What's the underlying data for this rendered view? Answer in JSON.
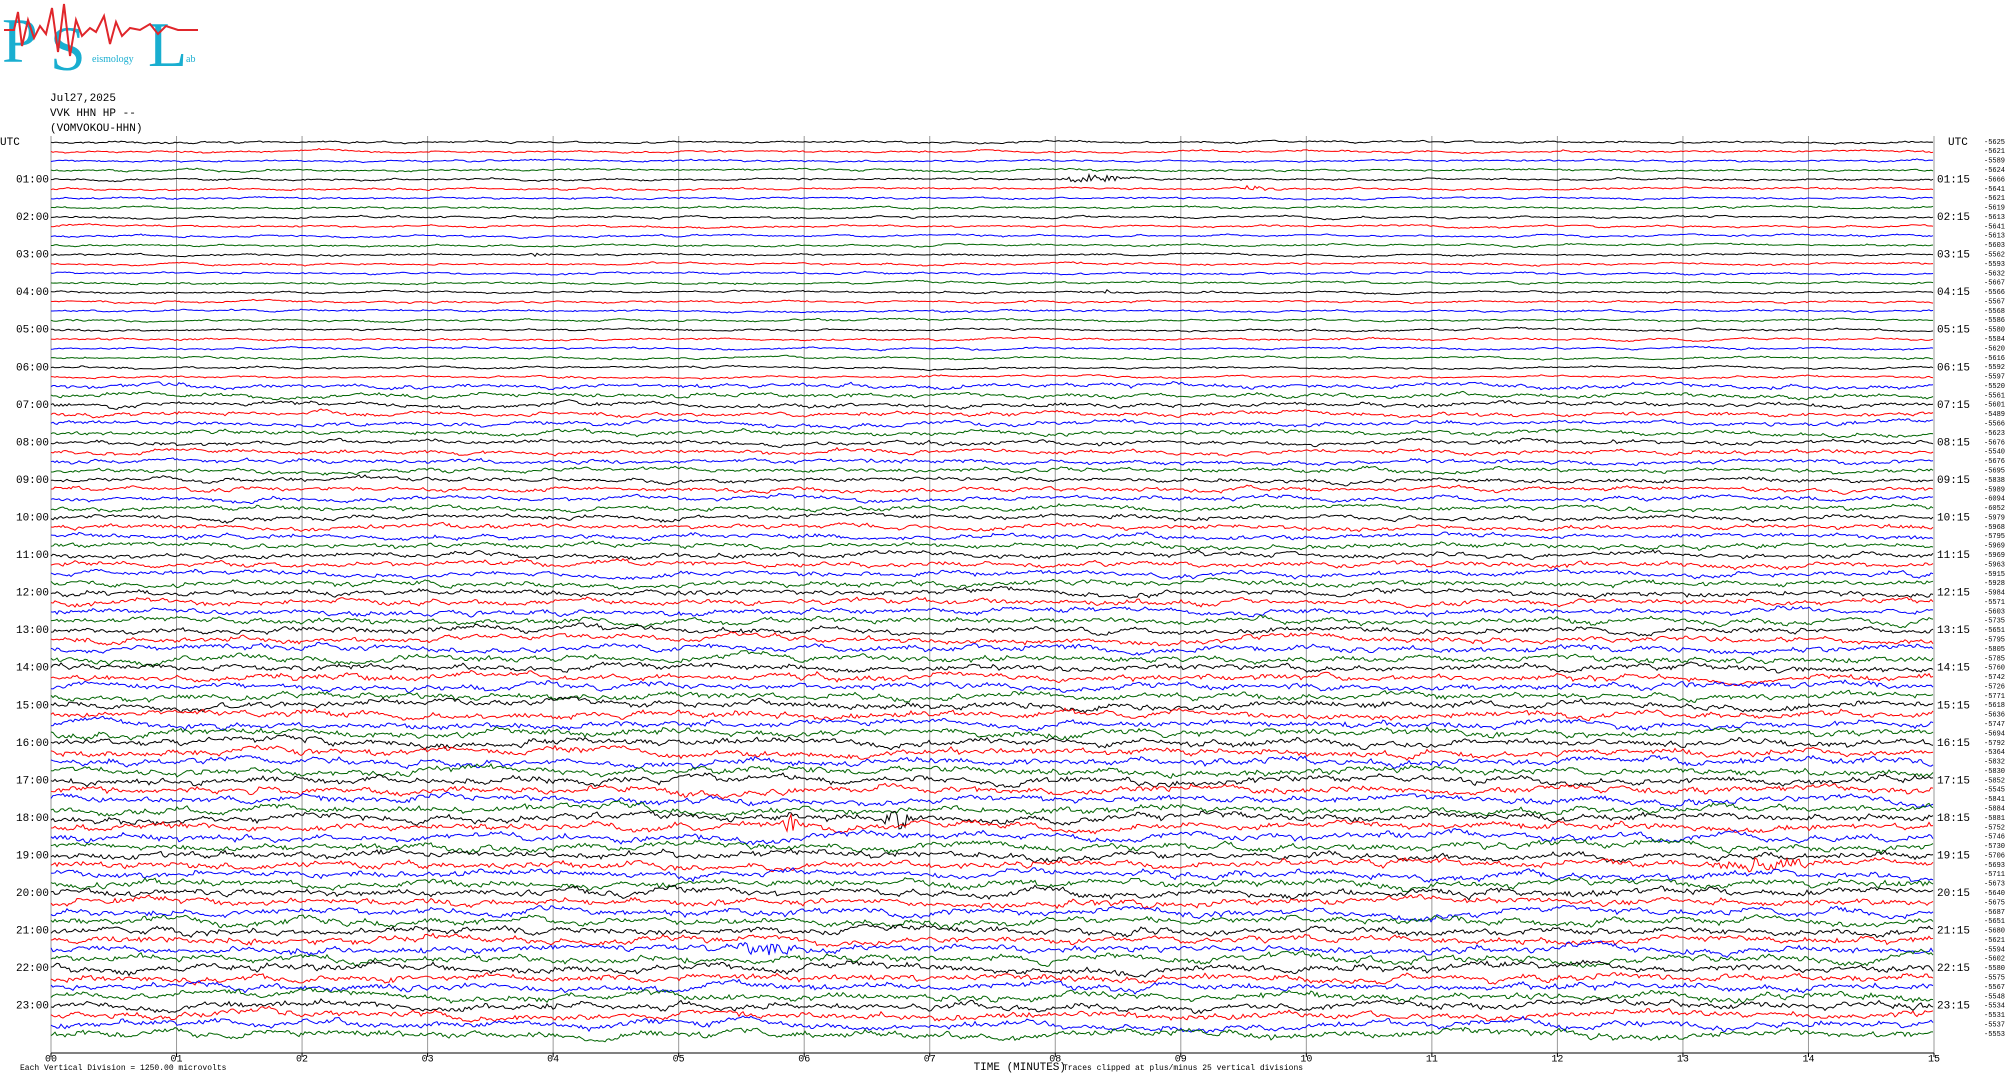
{
  "header": {
    "logo_letters": [
      "P",
      "S",
      "L"
    ],
    "logo_small": [
      "eismology",
      "ab"
    ]
  },
  "chart_data": {
    "type": "helicorder",
    "date": "Jul27,2025",
    "station": "VVK HHN HP --",
    "channel_name": "(VOMVOKOU-HHN)",
    "left_axis_label": "UTC",
    "right_axis_label": "UTC",
    "xlabel": "TIME (MINUTES)",
    "scale_note": "Each Vertical Division = 1250.00 microvolts",
    "clip_note": "Traces clipped at plus/minus 25 vertical divisions",
    "xlim": [
      0,
      15
    ],
    "xticks": [
      {
        "value": 0,
        "label": "00"
      },
      {
        "value": 1,
        "label": "01"
      },
      {
        "value": 2,
        "label": "02"
      },
      {
        "value": 3,
        "label": "03"
      },
      {
        "value": 4,
        "label": "04"
      },
      {
        "value": 5,
        "label": "05"
      },
      {
        "value": 6,
        "label": "06"
      },
      {
        "value": 7,
        "label": "07"
      },
      {
        "value": 8,
        "label": "08"
      },
      {
        "value": 9,
        "label": "09"
      },
      {
        "value": 10,
        "label": "10"
      },
      {
        "value": 11,
        "label": "11"
      },
      {
        "value": 12,
        "label": "12"
      },
      {
        "value": 13,
        "label": "13"
      },
      {
        "value": 14,
        "label": "14"
      },
      {
        "value": 15,
        "label": "15"
      }
    ],
    "trace_colors": [
      "#000000",
      "#ff0000",
      "#0000ff",
      "#006400"
    ],
    "left_labels": [
      null,
      null,
      null,
      null,
      "01:00",
      null,
      null,
      null,
      "02:00",
      null,
      null,
      null,
      "03:00",
      null,
      null,
      null,
      "04:00",
      null,
      null,
      null,
      "05:00",
      null,
      null,
      null,
      "06:00",
      null,
      null,
      null,
      "07:00",
      null,
      null,
      null,
      "08:00",
      null,
      null,
      null,
      "09:00",
      null,
      null,
      null,
      "10:00",
      null,
      null,
      null,
      "11:00",
      null,
      null,
      null,
      "12:00",
      null,
      null,
      null,
      "13:00",
      null,
      null,
      null,
      "14:00",
      null,
      null,
      null,
      "15:00",
      null,
      null,
      null,
      "16:00",
      null,
      null,
      null,
      "17:00",
      null,
      null,
      null,
      "18:00",
      null,
      null,
      null,
      "19:00",
      null,
      null,
      null,
      "20:00",
      null,
      null,
      null,
      "21:00",
      null,
      null,
      null,
      "22:00",
      null,
      null,
      null,
      "23:00",
      null,
      null,
      null
    ],
    "right_labels": [
      null,
      null,
      null,
      null,
      "01:15",
      null,
      null,
      null,
      "02:15",
      null,
      null,
      null,
      "03:15",
      null,
      null,
      null,
      "04:15",
      null,
      null,
      null,
      "05:15",
      null,
      null,
      null,
      "06:15",
      null,
      null,
      null,
      "07:15",
      null,
      null,
      null,
      "08:15",
      null,
      null,
      null,
      "09:15",
      null,
      null,
      null,
      "10:15",
      null,
      null,
      null,
      "11:15",
      null,
      null,
      null,
      "12:15",
      null,
      null,
      null,
      "13:15",
      null,
      null,
      null,
      "14:15",
      null,
      null,
      null,
      "15:15",
      null,
      null,
      null,
      "16:15",
      null,
      null,
      null,
      "17:15",
      null,
      null,
      null,
      "18:15",
      null,
      null,
      null,
      "19:15",
      null,
      null,
      null,
      "20:15",
      null,
      null,
      null,
      "21:15",
      null,
      null,
      null,
      "22:15",
      null,
      null,
      null,
      "23:15",
      null,
      null,
      null
    ],
    "values": [
      -5625,
      -5621,
      -5589,
      -5624,
      -5666,
      -5641,
      -5621,
      -5619,
      -5613,
      -5641,
      -5613,
      -5603,
      -5562,
      -5593,
      -5632,
      -5667,
      -5566,
      -5567,
      -5568,
      -5586,
      -5580,
      -5584,
      -5620,
      -5616,
      -5592,
      -5597,
      -5520,
      -5561,
      -5601,
      -5489,
      -5566,
      -5623,
      -5676,
      -5540,
      -5676,
      -5695,
      -5838,
      -5989,
      -6094,
      -6052,
      -5979,
      -5968,
      -5795,
      -5969,
      -5969,
      -5963,
      -5915,
      -5928,
      -5984,
      -5571,
      -5603,
      -5735,
      -5651,
      -5795,
      -5805,
      -5785,
      -5760,
      -5742,
      -5726,
      -5771,
      -5618,
      -5636,
      -5747,
      -5694,
      -5792,
      -5364,
      -5832,
      -5830,
      -5852,
      -5545,
      -5841,
      -5884,
      -5881,
      -5752,
      -5746,
      -5730,
      -5706,
      -5693,
      -5711,
      -5673,
      -5640,
      -5675,
      -5687,
      -5651,
      -5680,
      -5621,
      -5594,
      -5602,
      -5580,
      -5575,
      -5567,
      -5548,
      -5534,
      -5531,
      -5537,
      -5553
    ]
  }
}
